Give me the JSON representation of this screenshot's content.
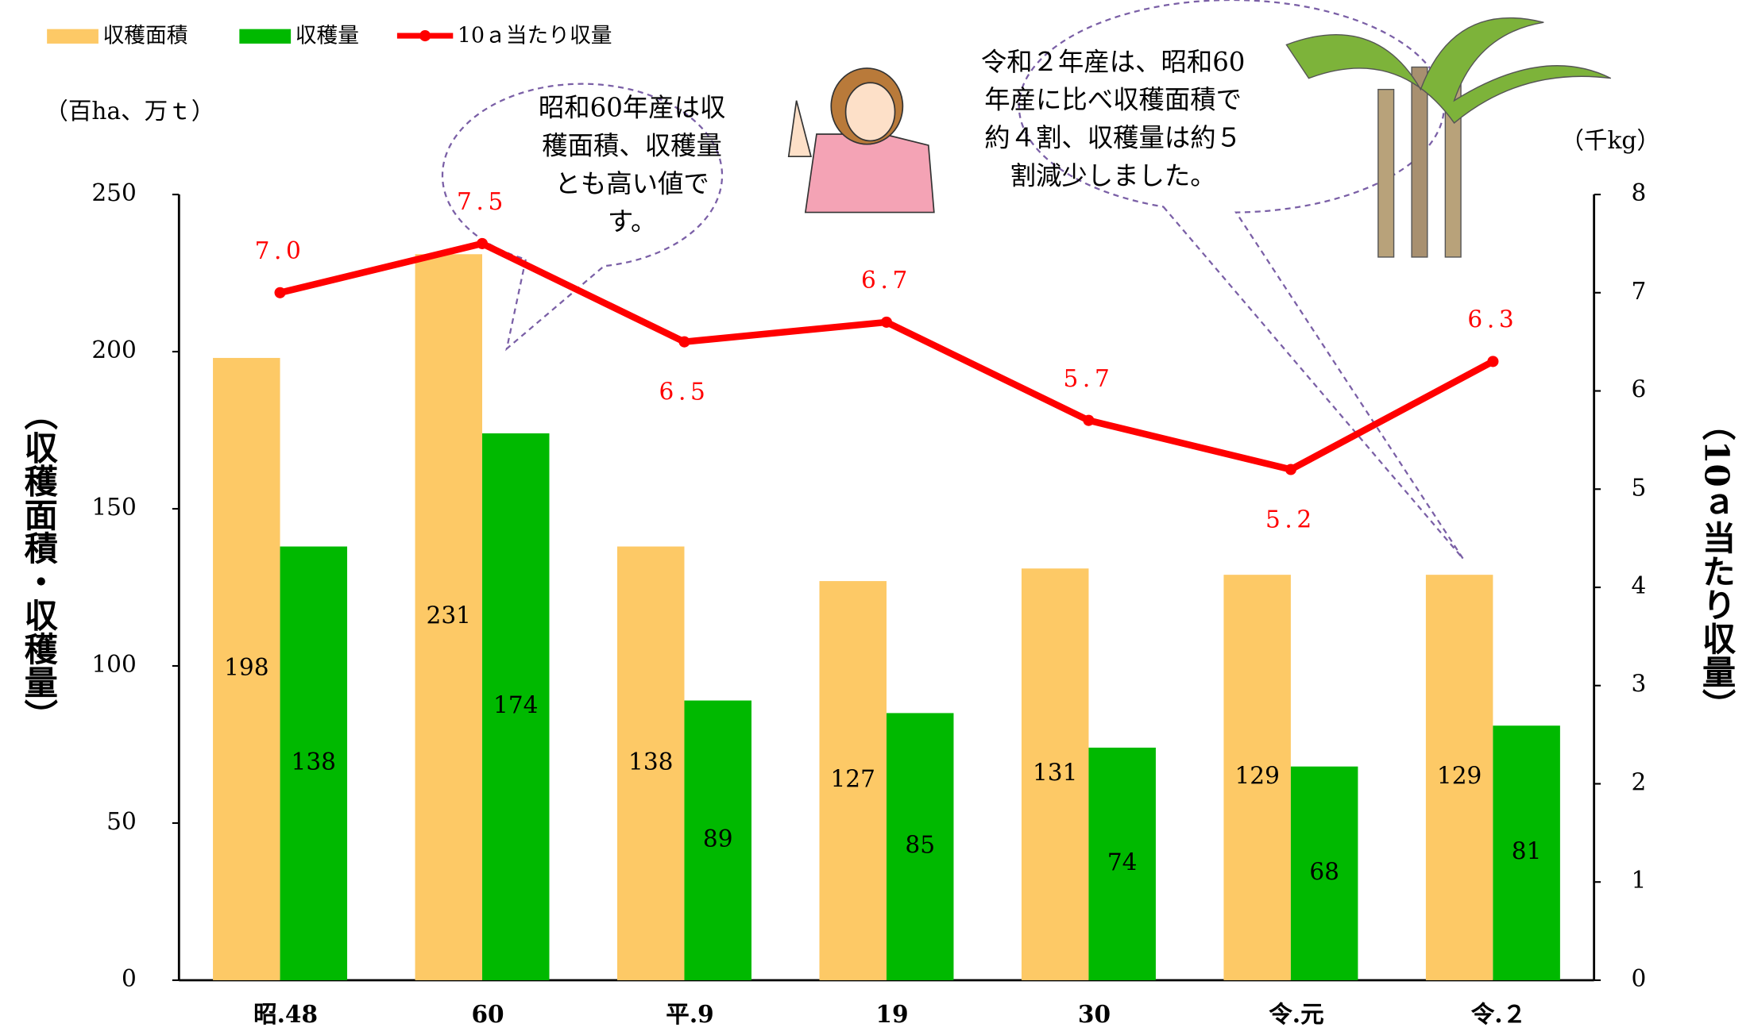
{
  "chart_data": {
    "type": "bar",
    "categories": [
      "昭.48",
      "60",
      "平.9",
      "19",
      "30",
      "令.元",
      "令.２"
    ],
    "series": [
      {
        "name": "収穫面積",
        "color": "#fdc966",
        "values": [
          198,
          231,
          138,
          127,
          131,
          129,
          129
        ]
      },
      {
        "name": "収穫量",
        "color": "#00b900",
        "values": [
          138,
          174,
          89,
          85,
          74,
          68,
          81
        ]
      },
      {
        "name": "10ａ当たり収量",
        "color": "#ff0000",
        "type": "line",
        "axis": "y2",
        "values": [
          7.0,
          7.5,
          6.5,
          6.7,
          5.7,
          5.2,
          6.3
        ],
        "value_labels": [
          "7.0",
          "7.5",
          "6.5",
          "6.7",
          "5.7",
          "5.2",
          "6.3"
        ]
      }
    ],
    "ylim": [
      0,
      250
    ],
    "yticks": [
      0,
      50,
      100,
      150,
      200,
      250
    ],
    "y2lim": [
      0,
      8
    ],
    "y2ticks": [
      0,
      1,
      2,
      3,
      4,
      5,
      6,
      7,
      8
    ],
    "y_unit": "（百ha、万ｔ）",
    "y2_unit": "（千kg）",
    "y_label": "（収穫面積・収穫量）",
    "y2_label": "（10ａ当たり収量）",
    "annotations": [
      {
        "lines": [
          "昭和60年産は収",
          "穫面積、収穫量",
          "とも高い値で",
          "す。"
        ]
      },
      {
        "lines": [
          "令和２年産は、昭和60",
          "年産に比べ収穫面積で",
          "約４割、収穫量は約５",
          "割減少しました。"
        ]
      }
    ]
  }
}
